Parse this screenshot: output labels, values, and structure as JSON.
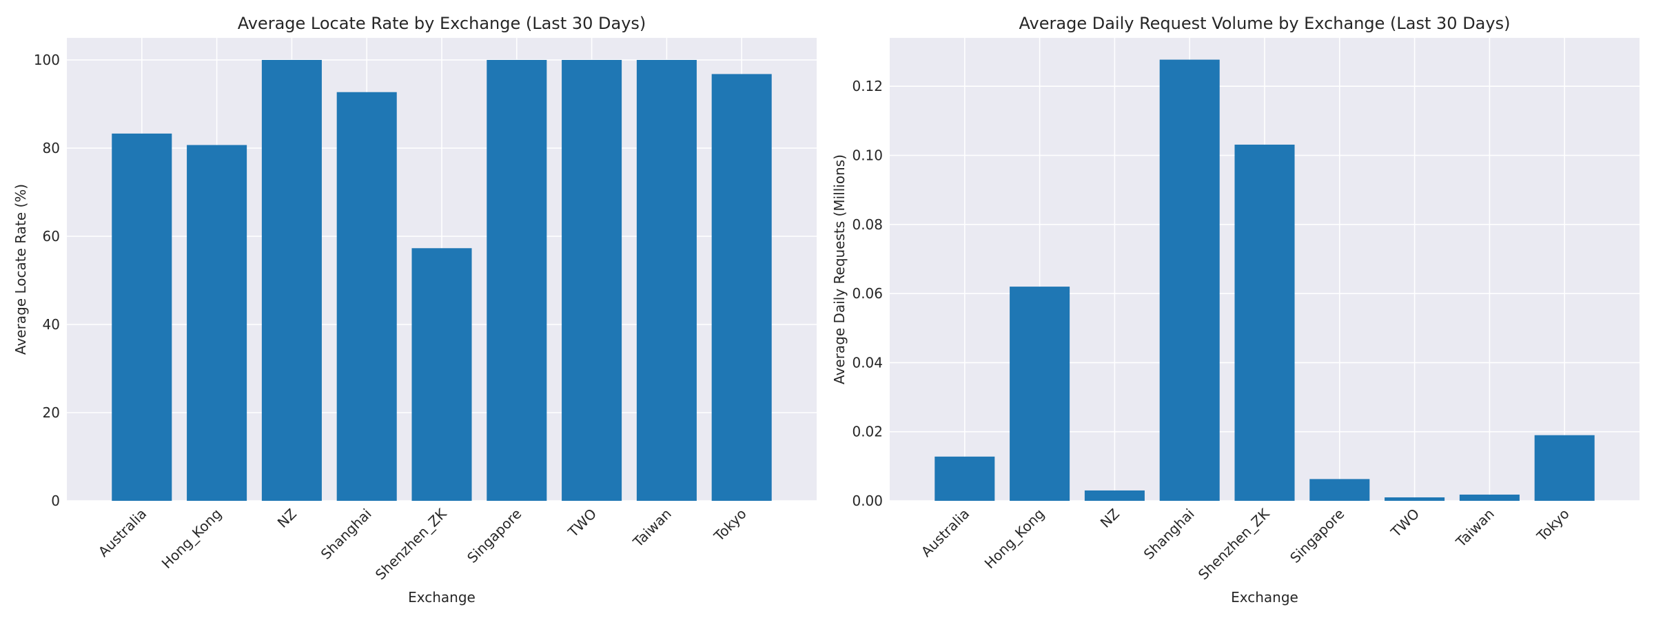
{
  "chart_data": [
    {
      "type": "bar",
      "title": "Average Locate Rate by Exchange (Last 30 Days)",
      "xlabel": "Exchange",
      "ylabel": "Average Locate Rate (%)",
      "categories": [
        "Australia",
        "Hong_Kong",
        "NZ",
        "Shanghai",
        "Shenzhen_ZK",
        "Singapore",
        "TWO",
        "Taiwan",
        "Tokyo"
      ],
      "values": [
        83.3,
        80.7,
        100,
        92.7,
        57.3,
        100,
        100,
        100,
        96.8
      ],
      "ylim": [
        0,
        105
      ],
      "yticks": [
        0,
        20,
        40,
        60,
        80,
        100
      ],
      "ytick_labels": [
        "0",
        "20",
        "40",
        "60",
        "80",
        "100"
      ],
      "grid": true,
      "color": "#1f77b4"
    },
    {
      "type": "bar",
      "title": "Average Daily Request Volume by Exchange (Last 30 Days)",
      "xlabel": "Exchange",
      "ylabel": "Average Daily Requests (Millions)",
      "categories": [
        "Australia",
        "Hong_Kong",
        "NZ",
        "Shanghai",
        "Shenzhen_ZK",
        "Singapore",
        "TWO",
        "Taiwan",
        "Tokyo"
      ],
      "values": [
        0.0128,
        0.062,
        0.003,
        0.1277,
        0.1031,
        0.0063,
        0.001,
        0.0018,
        0.019
      ],
      "ylim": [
        0,
        0.134
      ],
      "yticks": [
        0,
        0.02,
        0.04,
        0.06,
        0.08,
        0.1,
        0.12
      ],
      "ytick_labels": [
        "0.00",
        "0.02",
        "0.04",
        "0.06",
        "0.08",
        "0.10",
        "0.12"
      ],
      "grid": true,
      "color": "#1f77b4"
    }
  ]
}
